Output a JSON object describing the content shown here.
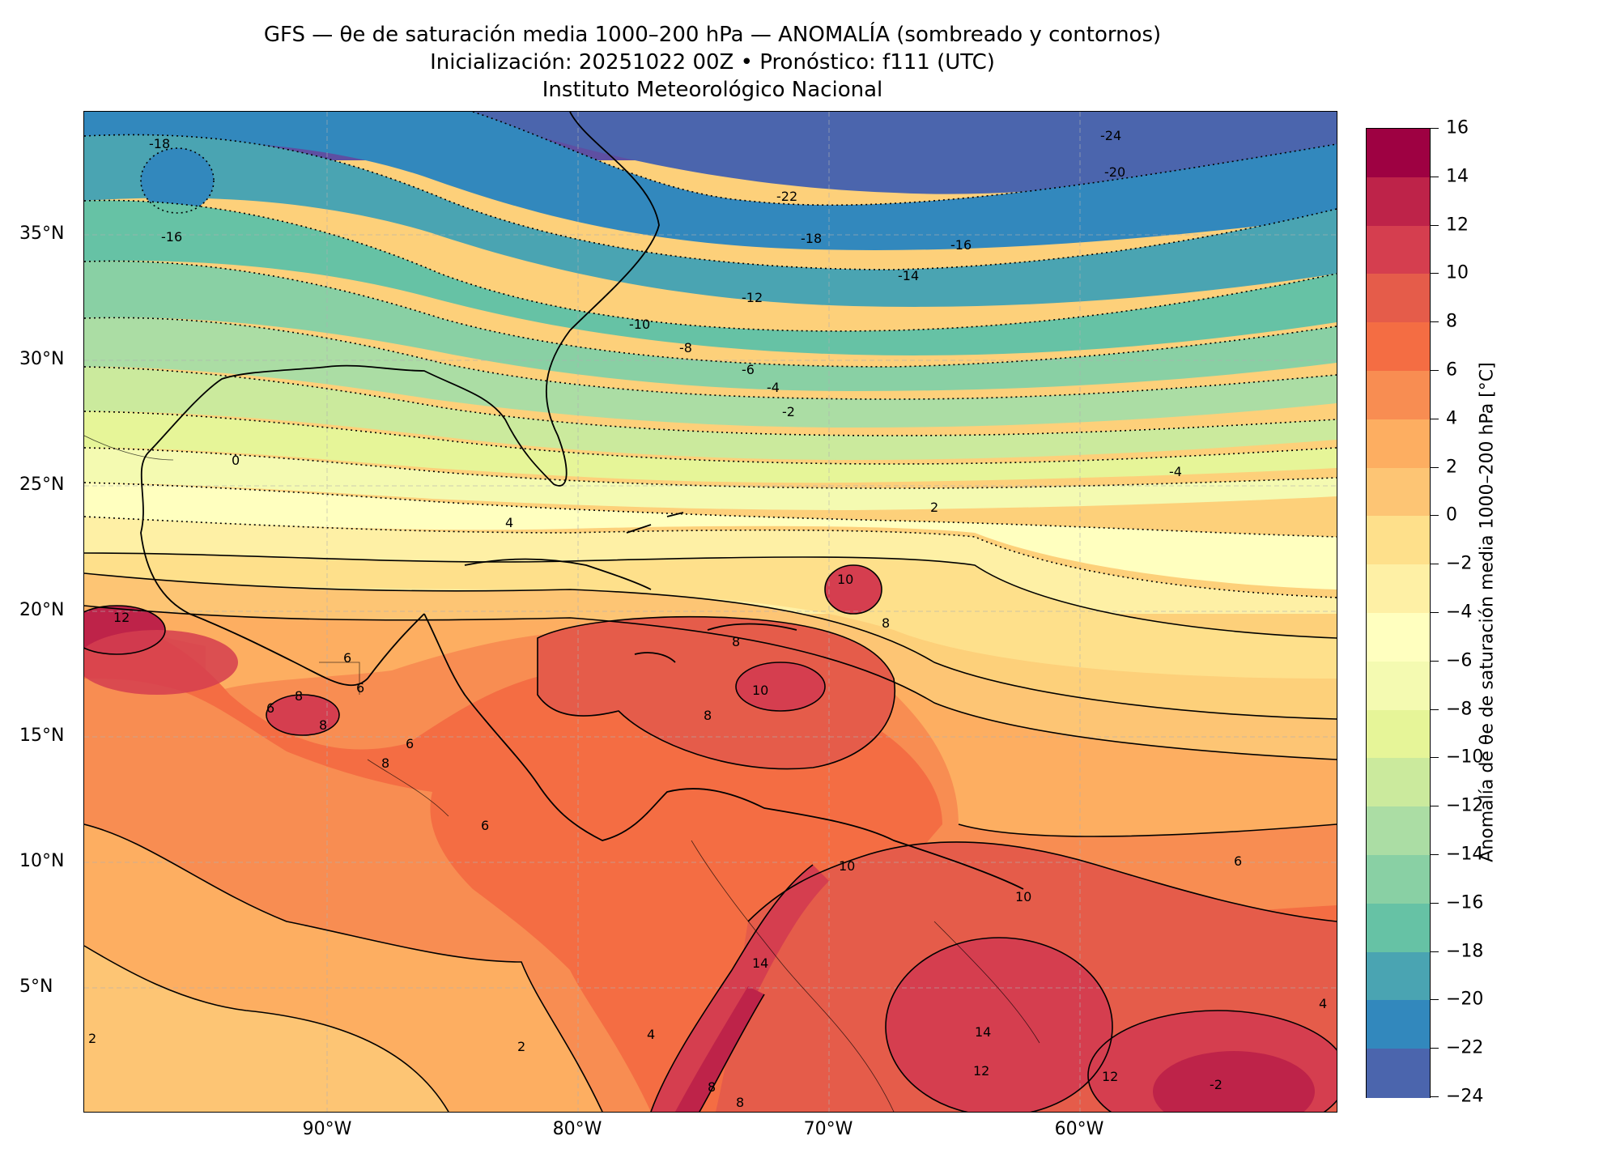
{
  "title": {
    "line1": "GFS — θe de saturación media 1000–200 hPa — ANOMALÍA (sombreado y contornos)",
    "line2": "Inicialización: 20251022 00Z   •   Pronóstico: f111 (UTC)",
    "line3": "Instituto Meteorológico Nacional"
  },
  "axes": {
    "lat_labels": [
      "35°N",
      "30°N",
      "25°N",
      "20°N",
      "15°N",
      "10°N",
      "5°N"
    ],
    "lon_labels": [
      "90°W",
      "80°W",
      "70°W",
      "60°W"
    ]
  },
  "colorbar": {
    "title": "Anomalía de θe de saturación media 1000–200 hPa [°C]",
    "ticks": [
      "16",
      "14",
      "12",
      "10",
      "8",
      "6",
      "4",
      "2",
      "0",
      "−2",
      "−4",
      "−6",
      "−8",
      "−10",
      "−12",
      "−14",
      "−16",
      "−18",
      "−20",
      "−22",
      "−24"
    ],
    "colors": [
      "#9e0142",
      "#be2349",
      "#d53e4f",
      "#e55c4a",
      "#f46d43",
      "#f88d52",
      "#fdae61",
      "#fdc574",
      "#fee08b",
      "#fef0a5",
      "#ffffbf",
      "#f4fab1",
      "#e6f598",
      "#cbea9d",
      "#abdda4",
      "#89d0a4",
      "#66c2a5",
      "#4aa4b2",
      "#3288bd",
      "#4b65ad",
      "#5e4fa2"
    ]
  },
  "contour_labels": [
    "-24",
    "-22",
    "-20",
    "-18",
    "-18",
    "-16",
    "-16",
    "-14",
    "-12",
    "-10",
    "-8",
    "-6",
    "-4",
    "-2",
    "-4",
    "0",
    "2",
    "4",
    "6",
    "6",
    "6",
    "6",
    "6",
    "6",
    "8",
    "8",
    "8",
    "8",
    "8",
    "8",
    "8",
    "8",
    "10",
    "10",
    "10",
    "10",
    "12",
    "12",
    "12",
    "14",
    "14",
    "-2",
    "2",
    "2",
    "4",
    "4"
  ]
}
